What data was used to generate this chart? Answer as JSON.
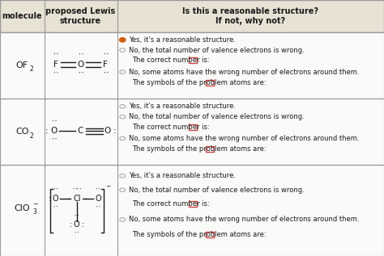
{
  "bg_color": "#f0ebe0",
  "border_color": "#999999",
  "header_bg": "#e8e2d4",
  "text_color": "#1a1a1a",
  "orange_color": "#cc5500",
  "radio_gray": "#aaaaaa",
  "input_box_color": "#cc4444",
  "white": "#ffffff",
  "c0": 0.0,
  "c1": 0.115,
  "c2": 0.305,
  "c3": 1.0,
  "r0": 1.0,
  "r1": 0.875,
  "r2": 0.615,
  "r3": 0.355,
  "r4": 0.0,
  "header_col1": "molecule",
  "header_col2": "proposed Lewis\nstructure",
  "header_col3": "Is this a reasonable structure?\nIf not, why not?",
  "mol1": "OF",
  "mol1_sub": "2",
  "mol2": "CO",
  "mol2_sub": "2",
  "mol3": "ClO",
  "mol3_sub": "3",
  "mol3_sup": "−",
  "fs_header": 7,
  "fs_mol": 8,
  "fs_lewis": 7.5,
  "fs_radio": 6.0,
  "fs_dots": 5.5,
  "radio_options": [
    "Yes, it’s a reasonable structure.",
    "No, the total number of valence electrons is wrong.",
    "The correct number is:",
    "No, some atoms have the wrong number of electrons around them.",
    "The symbols of the problem atoms are:"
  ],
  "selected_rows": [
    true,
    false,
    false
  ]
}
